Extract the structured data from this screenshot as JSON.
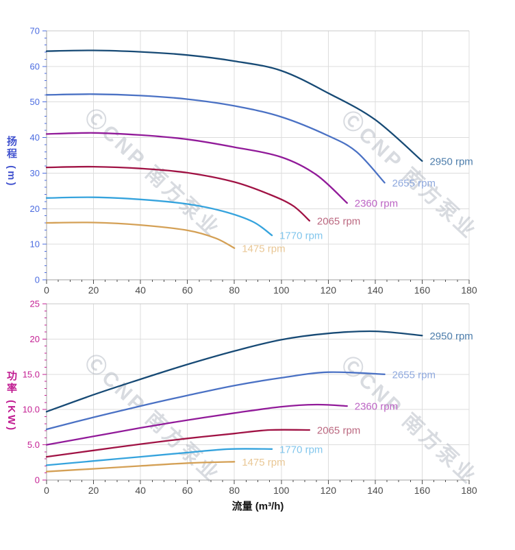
{
  "page": {
    "background": "#ffffff"
  },
  "watermark": {
    "text": "ⒸCNP 南方泵业",
    "color": "#aab0bc"
  },
  "chart_data": [
    {
      "type": "line",
      "title": "",
      "ylabel": "扬程 (m)",
      "xlabel": "",
      "xlim": [
        0,
        180
      ],
      "ylim": [
        0,
        70
      ],
      "x_ticks": [
        0,
        20,
        40,
        60,
        80,
        100,
        120,
        140,
        160,
        180
      ],
      "x_minor_step": 5,
      "y_ticks": [
        {
          "v": 0,
          "label": "0"
        },
        {
          "v": 10,
          "label": "10"
        },
        {
          "v": 20,
          "label": "20"
        },
        {
          "v": 30,
          "label": "30"
        },
        {
          "v": 40,
          "label": "40"
        },
        {
          "v": 50,
          "label": "50"
        },
        {
          "v": 60,
          "label": "60"
        },
        {
          "v": 70,
          "label": "70"
        }
      ],
      "y_major_step": 10,
      "y_minor_step": 2,
      "grid": true,
      "grid_color": "#dcdcdc",
      "axis_color": "#a0a0a0",
      "x_tick_color": "#4a4a4a",
      "y_tick_color": "#4a6be0",
      "legend_position": "end-of-curve",
      "series": [
        {
          "name": "2950 rpm",
          "color": "#174a75",
          "label_color": "#4d7dab",
          "points": [
            [
              0,
              64.3
            ],
            [
              20,
              64.5
            ],
            [
              40,
              64.1
            ],
            [
              60,
              63.2
            ],
            [
              80,
              61.5
            ],
            [
              100,
              58.8
            ],
            [
              120,
              52.5
            ],
            [
              140,
              45.0
            ],
            [
              160,
              33.4
            ]
          ]
        },
        {
          "name": "2655 rpm",
          "color": "#4a71c4",
          "label_color": "#8fa9de",
          "points": [
            [
              0,
              52.0
            ],
            [
              20,
              52.2
            ],
            [
              40,
              51.8
            ],
            [
              60,
              50.8
            ],
            [
              80,
              48.9
            ],
            [
              100,
              45.8
            ],
            [
              120,
              40.5
            ],
            [
              132,
              36.0
            ],
            [
              144,
              27.3
            ]
          ]
        },
        {
          "name": "2360 rpm",
          "color": "#911a99",
          "label_color": "#bc64c4",
          "points": [
            [
              0,
              41.0
            ],
            [
              20,
              41.3
            ],
            [
              40,
              40.7
            ],
            [
              60,
              39.5
            ],
            [
              80,
              37.3
            ],
            [
              100,
              34.5
            ],
            [
              115,
              29.5
            ],
            [
              128,
              21.6
            ]
          ]
        },
        {
          "name": "2065 rpm",
          "color": "#a01244",
          "label_color": "#bb6880",
          "points": [
            [
              0,
              31.6
            ],
            [
              20,
              31.8
            ],
            [
              40,
              31.3
            ],
            [
              60,
              30.1
            ],
            [
              80,
              27.5
            ],
            [
              95,
              24.0
            ],
            [
              105,
              20.8
            ],
            [
              112,
              16.6
            ]
          ]
        },
        {
          "name": "1770 rpm",
          "color": "#35a3dd",
          "label_color": "#82c6ec",
          "points": [
            [
              0,
              23.0
            ],
            [
              20,
              23.2
            ],
            [
              40,
              22.6
            ],
            [
              60,
              21.3
            ],
            [
              75,
              19.3
            ],
            [
              88,
              16.3
            ],
            [
              96,
              12.5
            ]
          ]
        },
        {
          "name": "1475 rpm",
          "color": "#d4a055",
          "label_color": "#e9c795",
          "points": [
            [
              0,
              16.0
            ],
            [
              20,
              16.1
            ],
            [
              40,
              15.4
            ],
            [
              60,
              13.9
            ],
            [
              72,
              11.7
            ],
            [
              80,
              8.9
            ]
          ]
        }
      ]
    },
    {
      "type": "line",
      "title": "",
      "ylabel": "功率 (KW)",
      "xlabel": "流量 (m³/h)",
      "xlim": [
        0,
        180
      ],
      "ylim": [
        0,
        25
      ],
      "x_ticks": [
        0,
        20,
        40,
        60,
        80,
        100,
        120,
        140,
        160,
        180
      ],
      "x_minor_step": 5,
      "y_ticks": [
        {
          "v": 0,
          "label": "0"
        },
        {
          "v": 5,
          "label": "5.0"
        },
        {
          "v": 10,
          "label": "10.0"
        },
        {
          "v": 15,
          "label": "15.0"
        },
        {
          "v": 20,
          "label": "20"
        },
        {
          "v": 25,
          "label": "25"
        }
      ],
      "y_major_step": 5,
      "y_minor_step": 1,
      "grid": true,
      "grid_color": "#dcdcdc",
      "axis_color": "#a0a0a0",
      "x_tick_color": "#4a4a4a",
      "y_tick_color": "#c41f93",
      "legend_position": "end-of-curve",
      "series": [
        {
          "name": "2950 rpm",
          "color": "#174a75",
          "label_color": "#4d7dab",
          "points": [
            [
              0,
              9.7
            ],
            [
              20,
              12.1
            ],
            [
              40,
              14.3
            ],
            [
              60,
              16.4
            ],
            [
              80,
              18.3
            ],
            [
              100,
              19.9
            ],
            [
              120,
              20.8
            ],
            [
              140,
              21.1
            ],
            [
              160,
              20.5
            ]
          ]
        },
        {
          "name": "2655 rpm",
          "color": "#4a71c4",
          "label_color": "#8fa9de",
          "points": [
            [
              0,
              7.2
            ],
            [
              20,
              8.9
            ],
            [
              40,
              10.5
            ],
            [
              60,
              12.0
            ],
            [
              80,
              13.4
            ],
            [
              100,
              14.5
            ],
            [
              120,
              15.3
            ],
            [
              144,
              15.0
            ]
          ]
        },
        {
          "name": "2360 rpm",
          "color": "#911a99",
          "label_color": "#bc64c4",
          "points": [
            [
              0,
              5.0
            ],
            [
              20,
              6.2
            ],
            [
              40,
              7.4
            ],
            [
              60,
              8.5
            ],
            [
              80,
              9.5
            ],
            [
              100,
              10.4
            ],
            [
              115,
              10.7
            ],
            [
              128,
              10.5
            ]
          ]
        },
        {
          "name": "2065 rpm",
          "color": "#a01244",
          "label_color": "#bb6880",
          "points": [
            [
              0,
              3.3
            ],
            [
              20,
              4.2
            ],
            [
              40,
              5.1
            ],
            [
              60,
              5.9
            ],
            [
              80,
              6.6
            ],
            [
              95,
              7.1
            ],
            [
              112,
              7.1
            ]
          ]
        },
        {
          "name": "1770 rpm",
          "color": "#35a3dd",
          "label_color": "#82c6ec",
          "points": [
            [
              0,
              2.1
            ],
            [
              20,
              2.7
            ],
            [
              40,
              3.3
            ],
            [
              60,
              3.9
            ],
            [
              78,
              4.4
            ],
            [
              96,
              4.4
            ]
          ]
        },
        {
          "name": "1475 rpm",
          "color": "#d4a055",
          "label_color": "#e9c795",
          "points": [
            [
              0,
              1.2
            ],
            [
              20,
              1.6
            ],
            [
              40,
              2.0
            ],
            [
              60,
              2.4
            ],
            [
              80,
              2.6
            ]
          ]
        }
      ]
    }
  ]
}
